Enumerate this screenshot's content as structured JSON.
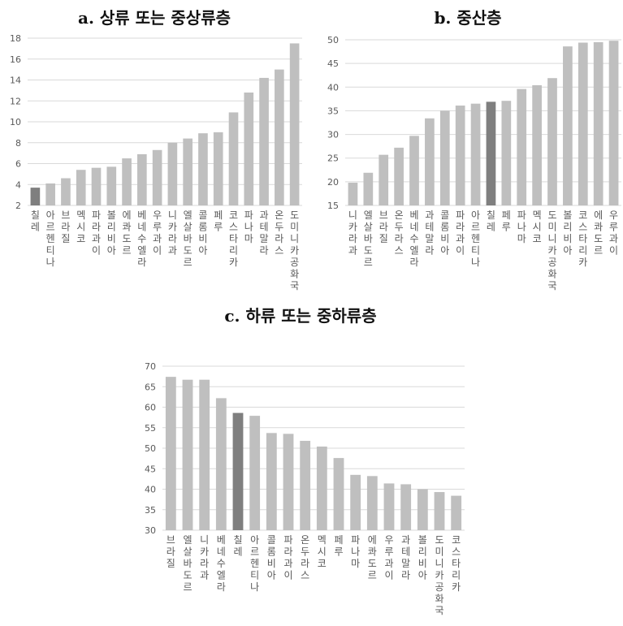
{
  "colors": {
    "bar": "#bfbfbf",
    "highlight": "#7f7f7f",
    "grid": "#d9d9d9",
    "axis_text": "#595959",
    "title": "#111111"
  },
  "chart_data": [
    {
      "id": "a",
      "type": "bar",
      "title": "a. 상류 또는 중상류층",
      "categories": [
        "칠레",
        "아르헨티나",
        "브라질",
        "멕시코",
        "파라과이",
        "볼리비아",
        "에콰도르",
        "베네수엘라",
        "우루과이",
        "니카라과",
        "엘살바도르",
        "콜롬비아",
        "페루",
        "코스타리카",
        "파나마",
        "과테말라",
        "온두라스",
        "도미니카공화국"
      ],
      "values": [
        3.7,
        4.1,
        4.6,
        5.4,
        5.6,
        5.7,
        6.5,
        6.9,
        7.3,
        8.0,
        8.4,
        8.9,
        9.0,
        10.9,
        12.8,
        14.2,
        15.0,
        17.5
      ],
      "highlight": "칠레",
      "ylim": [
        2,
        18
      ],
      "yticks": [
        2,
        4,
        6,
        8,
        10,
        12,
        14,
        16,
        18
      ],
      "grid": true
    },
    {
      "id": "b",
      "type": "bar",
      "title": "b. 중산층",
      "categories": [
        "니카라과",
        "엘살바도르",
        "브라질",
        "온두라스",
        "베네수엘라",
        "과테말라",
        "콜롬비아",
        "파라과이",
        "아르헨티나",
        "칠레",
        "페루",
        "파나마",
        "멕시코",
        "도미니카공화국",
        "볼리비아",
        "코스타리카",
        "에콰도르",
        "우루과이"
      ],
      "values": [
        19.8,
        21.9,
        25.7,
        27.2,
        29.7,
        33.4,
        35.0,
        36.1,
        36.5,
        36.9,
        37.1,
        39.6,
        40.4,
        41.9,
        48.6,
        49.4,
        49.5,
        49.8
      ],
      "highlight": "칠레",
      "ylim": [
        15,
        50
      ],
      "yticks": [
        15,
        20,
        25,
        30,
        35,
        40,
        45,
        50
      ],
      "grid": true
    },
    {
      "id": "c",
      "type": "bar",
      "title": "c. 하류 또는 중하류층",
      "categories": [
        "브라질",
        "엘살바도르",
        "니카라과",
        "베네수엘라",
        "칠레",
        "아르헨티나",
        "콜롬비아",
        "파라과이",
        "온두라스",
        "멕시코",
        "페루",
        "파나마",
        "에콰도르",
        "우루과이",
        "과테말라",
        "볼리비아",
        "도미니카공화국",
        "코스타리카"
      ],
      "values": [
        67.4,
        66.7,
        66.7,
        62.2,
        58.6,
        57.9,
        53.7,
        53.5,
        51.8,
        50.4,
        47.6,
        43.5,
        43.2,
        41.4,
        41.2,
        40.0,
        39.3,
        38.4
      ],
      "highlight": "칠레",
      "ylim": [
        30,
        70
      ],
      "yticks": [
        30,
        35,
        40,
        45,
        50,
        55,
        60,
        65,
        70
      ],
      "grid": true
    }
  ]
}
